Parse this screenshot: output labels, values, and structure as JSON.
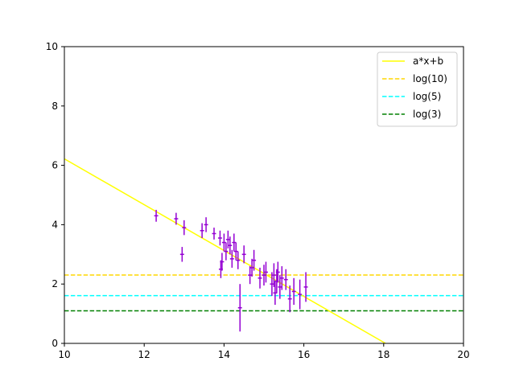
{
  "chart_data": {
    "type": "scatter",
    "xlim": [
      10,
      20
    ],
    "ylim": [
      0,
      10
    ],
    "x_ticks": [
      "10",
      "12",
      "14",
      "16",
      "18",
      "20"
    ],
    "y_ticks": [
      "0",
      "2",
      "4",
      "6",
      "8",
      "10"
    ],
    "grid": false,
    "legend_position": "top-right",
    "fit_line": {
      "name": "a*x+b",
      "color": "#ffff00",
      "slope": -0.773,
      "intercept": 13.95
    },
    "hlines": [
      {
        "name": "log(10)",
        "color": "#ffd700",
        "y": 2.303
      },
      {
        "name": "log(5)",
        "color": "#00ffff",
        "y": 1.609
      },
      {
        "name": "log(3)",
        "color": "#008000",
        "y": 1.099
      }
    ],
    "points_color": "#9400d3",
    "points": [
      {
        "x": 12.3,
        "y": 4.3,
        "xerr": 0.05,
        "yerr": 0.2
      },
      {
        "x": 12.8,
        "y": 4.2,
        "xerr": 0.05,
        "yerr": 0.2
      },
      {
        "x": 12.95,
        "y": 3.0,
        "xerr": 0.05,
        "yerr": 0.25
      },
      {
        "x": 13.0,
        "y": 3.9,
        "xerr": 0.05,
        "yerr": 0.25
      },
      {
        "x": 13.45,
        "y": 3.8,
        "xerr": 0.05,
        "yerr": 0.25
      },
      {
        "x": 13.55,
        "y": 4.0,
        "xerr": 0.05,
        "yerr": 0.25
      },
      {
        "x": 13.75,
        "y": 3.7,
        "xerr": 0.05,
        "yerr": 0.2
      },
      {
        "x": 13.9,
        "y": 3.55,
        "xerr": 0.05,
        "yerr": 0.25
      },
      {
        "x": 13.92,
        "y": 2.5,
        "xerr": 0.05,
        "yerr": 0.3
      },
      {
        "x": 13.95,
        "y": 2.75,
        "xerr": 0.05,
        "yerr": 0.3
      },
      {
        "x": 14.0,
        "y": 3.4,
        "xerr": 0.05,
        "yerr": 0.3
      },
      {
        "x": 14.05,
        "y": 3.1,
        "xerr": 0.05,
        "yerr": 0.3
      },
      {
        "x": 14.1,
        "y": 3.5,
        "xerr": 0.05,
        "yerr": 0.3
      },
      {
        "x": 14.15,
        "y": 3.3,
        "xerr": 0.05,
        "yerr": 0.3
      },
      {
        "x": 14.2,
        "y": 2.85,
        "xerr": 0.05,
        "yerr": 0.3
      },
      {
        "x": 14.25,
        "y": 3.4,
        "xerr": 0.05,
        "yerr": 0.3
      },
      {
        "x": 14.3,
        "y": 3.1,
        "xerr": 0.05,
        "yerr": 0.3
      },
      {
        "x": 14.35,
        "y": 2.8,
        "xerr": 0.05,
        "yerr": 0.3
      },
      {
        "x": 14.4,
        "y": 1.2,
        "xerr": 0.05,
        "yerr": 0.8
      },
      {
        "x": 14.5,
        "y": 3.0,
        "xerr": 0.05,
        "yerr": 0.3
      },
      {
        "x": 14.65,
        "y": 2.3,
        "xerr": 0.05,
        "yerr": 0.3
      },
      {
        "x": 14.7,
        "y": 2.55,
        "xerr": 0.05,
        "yerr": 0.3
      },
      {
        "x": 14.75,
        "y": 2.8,
        "xerr": 0.05,
        "yerr": 0.35
      },
      {
        "x": 14.9,
        "y": 2.2,
        "xerr": 0.05,
        "yerr": 0.35
      },
      {
        "x": 15.0,
        "y": 2.3,
        "xerr": 0.05,
        "yerr": 0.35
      },
      {
        "x": 15.05,
        "y": 2.4,
        "xerr": 0.05,
        "yerr": 0.35
      },
      {
        "x": 15.2,
        "y": 2.0,
        "xerr": 0.05,
        "yerr": 0.4
      },
      {
        "x": 15.25,
        "y": 2.3,
        "xerr": 0.05,
        "yerr": 0.4
      },
      {
        "x": 15.28,
        "y": 1.7,
        "xerr": 0.05,
        "yerr": 0.4
      },
      {
        "x": 15.32,
        "y": 2.1,
        "xerr": 0.05,
        "yerr": 0.4
      },
      {
        "x": 15.35,
        "y": 2.4,
        "xerr": 0.05,
        "yerr": 0.35
      },
      {
        "x": 15.4,
        "y": 1.9,
        "xerr": 0.05,
        "yerr": 0.4
      },
      {
        "x": 15.45,
        "y": 2.2,
        "xerr": 0.05,
        "yerr": 0.4
      },
      {
        "x": 15.55,
        "y": 2.15,
        "xerr": 0.05,
        "yerr": 0.35
      },
      {
        "x": 15.65,
        "y": 1.5,
        "xerr": 0.05,
        "yerr": 0.45
      },
      {
        "x": 15.75,
        "y": 1.75,
        "xerr": 0.05,
        "yerr": 0.45
      },
      {
        "x": 15.9,
        "y": 1.65,
        "xerr": 0.05,
        "yerr": 0.5
      },
      {
        "x": 16.05,
        "y": 1.9,
        "xerr": 0.05,
        "yerr": 0.5
      }
    ]
  }
}
